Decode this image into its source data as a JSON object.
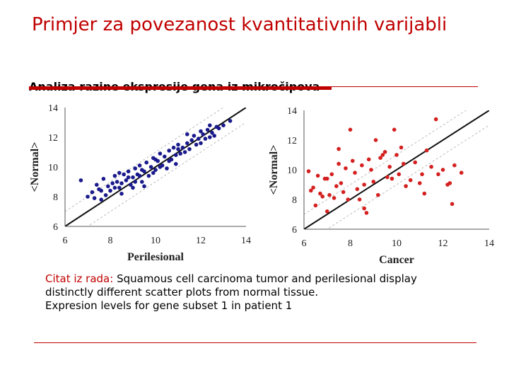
{
  "slide": {
    "title": "Primjer za povezanost kvantitativnih varijabli",
    "subtitle": "Analiza razine ekspresije gena iz mikročipova"
  },
  "caption": {
    "lead": "Citat iz rada:",
    "line1": " Squamous cell carcinoma tumor and perilesional display",
    "line2": "distinctly different scatter plots from normal tissue.",
    "line3": "Expresion levels for gene subset 1 in patient 1"
  },
  "chart_data": [
    {
      "type": "scatter",
      "xlabel": "Perilesional",
      "ylabel": "<Normal>",
      "xlim": [
        6,
        14
      ],
      "ylim": [
        6,
        14
      ],
      "xticks": [
        "6",
        "8",
        "10",
        "12",
        "14"
      ],
      "yticks": [
        "6",
        "8",
        "10",
        "12",
        "14"
      ],
      "point_color": "#1a1a8c",
      "reference_lines": [
        "y = x",
        "y = x + 1",
        "y = x - 1"
      ],
      "points": [
        [
          6.7,
          9.1
        ],
        [
          7.0,
          8.0
        ],
        [
          7.2,
          8.3
        ],
        [
          7.3,
          7.9
        ],
        [
          7.5,
          8.5
        ],
        [
          7.6,
          7.8
        ],
        [
          7.7,
          9.2
        ],
        [
          7.8,
          8.1
        ],
        [
          7.9,
          8.7
        ],
        [
          8.0,
          8.4
        ],
        [
          8.1,
          8.9
        ],
        [
          8.2,
          9.4
        ],
        [
          8.3,
          9.0
        ],
        [
          8.4,
          8.6
        ],
        [
          8.4,
          9.6
        ],
        [
          8.5,
          8.2
        ],
        [
          8.6,
          9.5
        ],
        [
          8.7,
          9.1
        ],
        [
          8.8,
          9.7
        ],
        [
          8.9,
          8.8
        ],
        [
          9.0,
          9.3
        ],
        [
          9.1,
          9.9
        ],
        [
          9.2,
          9.5
        ],
        [
          9.3,
          10.1
        ],
        [
          9.4,
          9.0
        ],
        [
          9.5,
          9.7
        ],
        [
          9.5,
          8.7
        ],
        [
          9.6,
          10.3
        ],
        [
          9.7,
          9.4
        ],
        [
          9.8,
          10.0
        ],
        [
          9.9,
          10.6
        ],
        [
          10.0,
          9.8
        ],
        [
          10.1,
          10.4
        ],
        [
          10.2,
          10.9
        ],
        [
          10.3,
          10.1
        ],
        [
          10.4,
          10.7
        ],
        [
          10.5,
          9.9
        ],
        [
          10.6,
          11.1
        ],
        [
          10.7,
          10.5
        ],
        [
          10.8,
          11.3
        ],
        [
          10.9,
          10.8
        ],
        [
          11.0,
          11.5
        ],
        [
          11.1,
          10.9
        ],
        [
          11.2,
          11.3
        ],
        [
          11.3,
          11.0
        ],
        [
          11.4,
          11.6
        ],
        [
          11.5,
          11.2
        ],
        [
          11.6,
          11.8
        ],
        [
          11.7,
          12.1
        ],
        [
          11.8,
          11.5
        ],
        [
          11.9,
          11.9
        ],
        [
          12.0,
          11.6
        ],
        [
          12.1,
          12.2
        ],
        [
          12.2,
          11.9
        ],
        [
          12.3,
          12.5
        ],
        [
          12.4,
          12.0
        ],
        [
          12.5,
          12.3
        ],
        [
          12.6,
          12.1
        ],
        [
          12.8,
          12.6
        ],
        [
          13.0,
          12.8
        ],
        [
          13.3,
          13.1
        ],
        [
          12.7,
          12.7
        ],
        [
          11.4,
          12.2
        ],
        [
          10.9,
          10.2
        ],
        [
          9.9,
          9.6
        ],
        [
          9.3,
          9.4
        ],
        [
          8.8,
          9.3
        ],
        [
          8.5,
          8.9
        ],
        [
          7.6,
          8.4
        ],
        [
          7.4,
          8.8
        ],
        [
          9.1,
          9.0
        ],
        [
          9.4,
          9.8
        ],
        [
          10.6,
          10.4
        ],
        [
          10.2,
          10.0
        ],
        [
          12.0,
          12.4
        ],
        [
          8.2,
          8.6
        ],
        [
          9.0,
          8.6
        ],
        [
          10.0,
          10.5
        ],
        [
          11.0,
          11.2
        ],
        [
          12.4,
          12.8
        ]
      ]
    },
    {
      "type": "scatter",
      "xlabel": "Cancer",
      "ylabel": "<Normal>",
      "xlim": [
        6,
        14
      ],
      "ylim": [
        6,
        14
      ],
      "xticks": [
        "6",
        "8",
        "10",
        "12",
        "14"
      ],
      "yticks": [
        "6",
        "8",
        "10",
        "12",
        "14"
      ],
      "point_color": "#d42020",
      "reference_lines": [
        "y = x",
        "y = x + 1",
        "y = x - 1"
      ],
      "points": [
        [
          6.2,
          9.9
        ],
        [
          6.3,
          8.6
        ],
        [
          6.4,
          8.8
        ],
        [
          6.5,
          7.6
        ],
        [
          6.6,
          9.6
        ],
        [
          6.7,
          8.4
        ],
        [
          6.8,
          8.2
        ],
        [
          6.9,
          9.4
        ],
        [
          7.0,
          7.2
        ],
        [
          7.1,
          8.3
        ],
        [
          7.2,
          9.7
        ],
        [
          7.3,
          8.1
        ],
        [
          7.4,
          8.9
        ],
        [
          7.5,
          11.4
        ],
        [
          7.6,
          9.1
        ],
        [
          7.7,
          8.5
        ],
        [
          7.8,
          10.1
        ],
        [
          7.9,
          8.0
        ],
        [
          8.0,
          12.7
        ],
        [
          8.1,
          10.6
        ],
        [
          8.2,
          9.8
        ],
        [
          8.3,
          8.7
        ],
        [
          8.5,
          10.3
        ],
        [
          8.6,
          9.0
        ],
        [
          8.7,
          7.1
        ],
        [
          8.8,
          10.7
        ],
        [
          8.9,
          10.0
        ],
        [
          9.0,
          9.2
        ],
        [
          9.1,
          12.0
        ],
        [
          9.2,
          8.3
        ],
        [
          9.3,
          10.8
        ],
        [
          9.5,
          11.2
        ],
        [
          9.6,
          9.5
        ],
        [
          9.7,
          10.2
        ],
        [
          9.9,
          12.7
        ],
        [
          10.0,
          11.0
        ],
        [
          10.1,
          9.7
        ],
        [
          10.2,
          11.5
        ],
        [
          10.4,
          8.9
        ],
        [
          10.6,
          9.3
        ],
        [
          10.8,
          10.5
        ],
        [
          11.0,
          9.1
        ],
        [
          11.2,
          8.4
        ],
        [
          11.3,
          11.3
        ],
        [
          11.5,
          10.2
        ],
        [
          11.7,
          13.4
        ],
        [
          11.8,
          9.7
        ],
        [
          12.0,
          10.0
        ],
        [
          12.2,
          9.0
        ],
        [
          12.4,
          7.7
        ],
        [
          12.5,
          10.3
        ],
        [
          12.8,
          9.8
        ],
        [
          10.3,
          10.4
        ],
        [
          9.4,
          11.0
        ],
        [
          8.4,
          8.0
        ],
        [
          7.5,
          10.4
        ],
        [
          7.0,
          9.4
        ],
        [
          11.1,
          9.7
        ],
        [
          9.8,
          9.4
        ],
        [
          8.6,
          7.4
        ],
        [
          12.3,
          9.1
        ]
      ]
    }
  ]
}
